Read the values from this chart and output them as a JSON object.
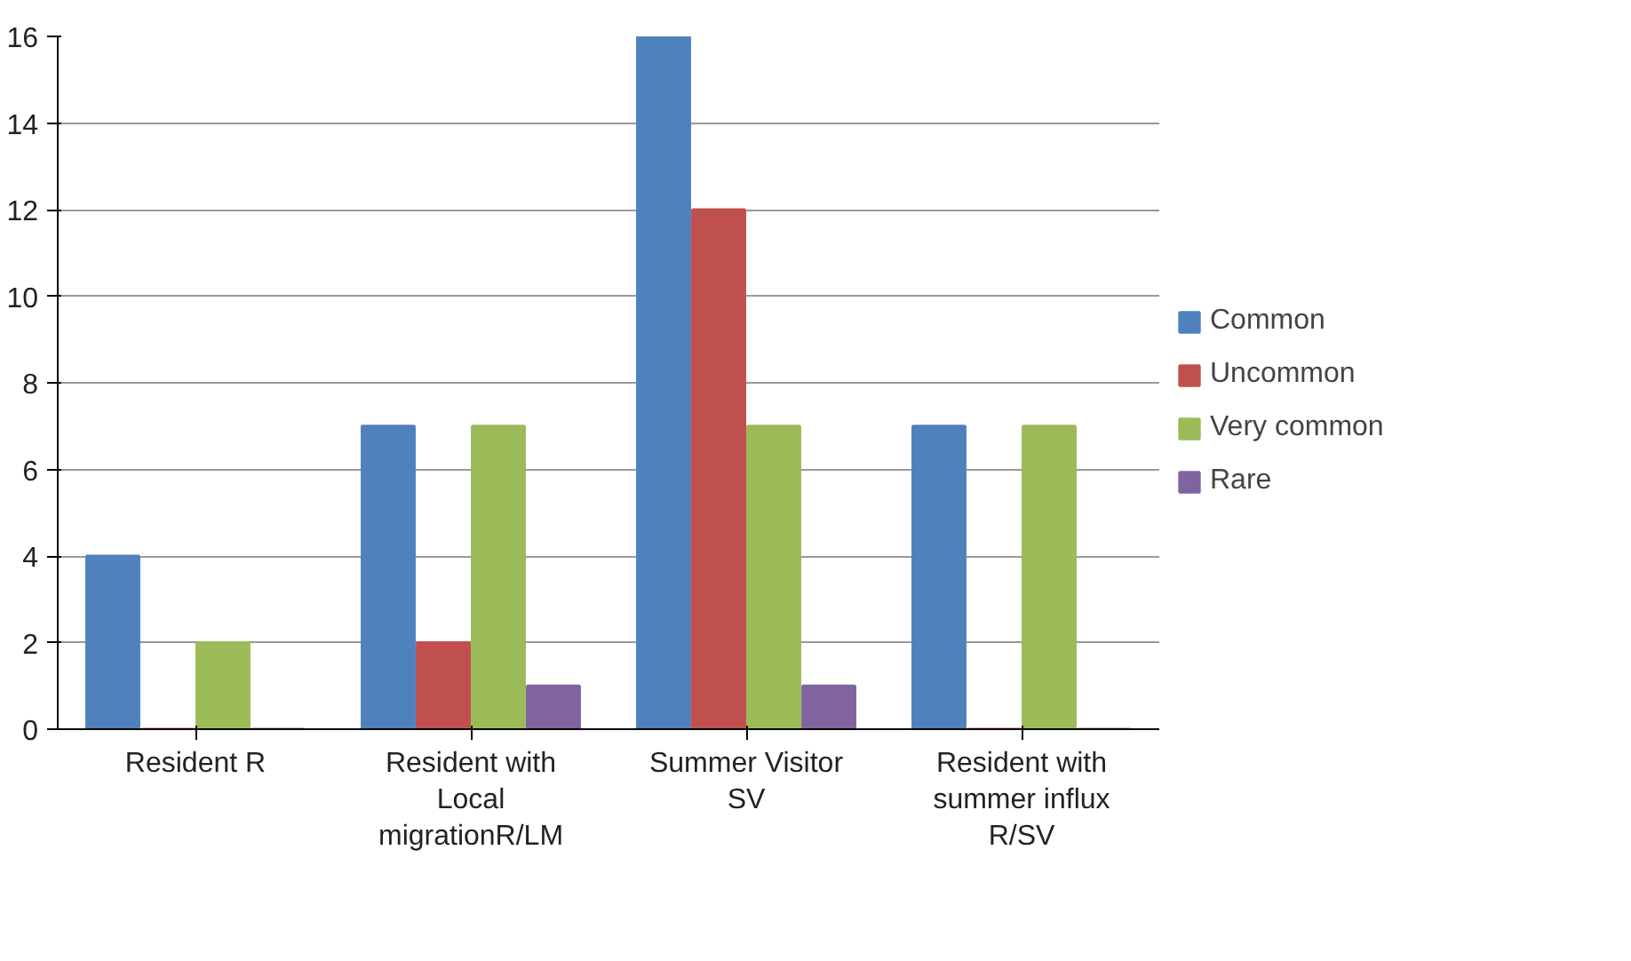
{
  "chart_data": {
    "type": "bar",
    "categories": [
      "Resident R",
      "Resident with Local migrationR/LM",
      "Summer Visitor SV",
      "Resident with summer influx R/SV"
    ],
    "series": [
      {
        "name": "Common",
        "color": "#4f81bd",
        "values": [
          4,
          7,
          16,
          7
        ]
      },
      {
        "name": "Uncommon",
        "color": "#c0504d",
        "values": [
          0,
          2,
          12,
          0
        ]
      },
      {
        "name": "Very common",
        "color": "#9bbb59",
        "values": [
          2,
          7,
          7,
          7
        ]
      },
      {
        "name": "Rare",
        "color": "#8064a2",
        "values": [
          0,
          1,
          1,
          0
        ]
      }
    ],
    "ylim": [
      0,
      16
    ],
    "yticks": [
      0,
      2,
      4,
      6,
      8,
      10,
      12,
      14,
      16
    ],
    "grid": "y",
    "legend": "right"
  }
}
